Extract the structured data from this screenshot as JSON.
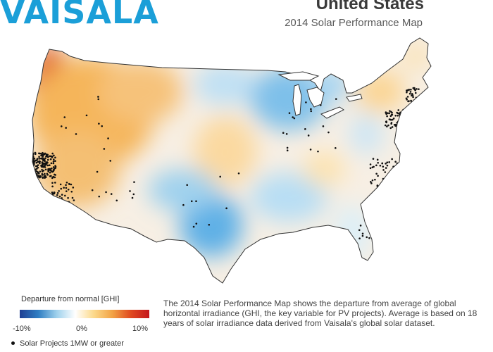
{
  "brand": {
    "logo_text": "VAISALA",
    "brand_color": "#1b9fd8"
  },
  "header": {
    "title": "United States",
    "subtitle": "2014 Solar Performance Map"
  },
  "map": {
    "variable": "GHI departure from normal",
    "regions": [
      {
        "area": "Pacific Northwest coast",
        "departure": "strong positive"
      },
      {
        "area": "Western interior",
        "departure": "positive"
      },
      {
        "area": "Upper Midwest / Great Lakes",
        "departure": "negative"
      },
      {
        "area": "Southern Plains / Texas",
        "departure": "negative"
      },
      {
        "area": "Central Plains",
        "departure": "slightly positive"
      },
      {
        "area": "Southeast",
        "departure": "mixed"
      }
    ]
  },
  "legend": {
    "title": "Departure from normal  [GHI]",
    "ticks": [
      "-10%",
      "0%",
      "10%"
    ],
    "scale_colors": [
      "#1e3f93",
      "#2f7ec3",
      "#9fd1ec",
      "#ffffff",
      "#fcd98a",
      "#f2a345",
      "#e04a20",
      "#c4161c"
    ],
    "marker_label": "Solar Projects 1MW or greater"
  },
  "description": "The 2014 Solar Performance Map shows the departure from average of global horizontal irradiance (GHI, the key variable for PV projects). Average is based on 18 years of solar irradiance data derived from Vaisala's global solar dataset."
}
